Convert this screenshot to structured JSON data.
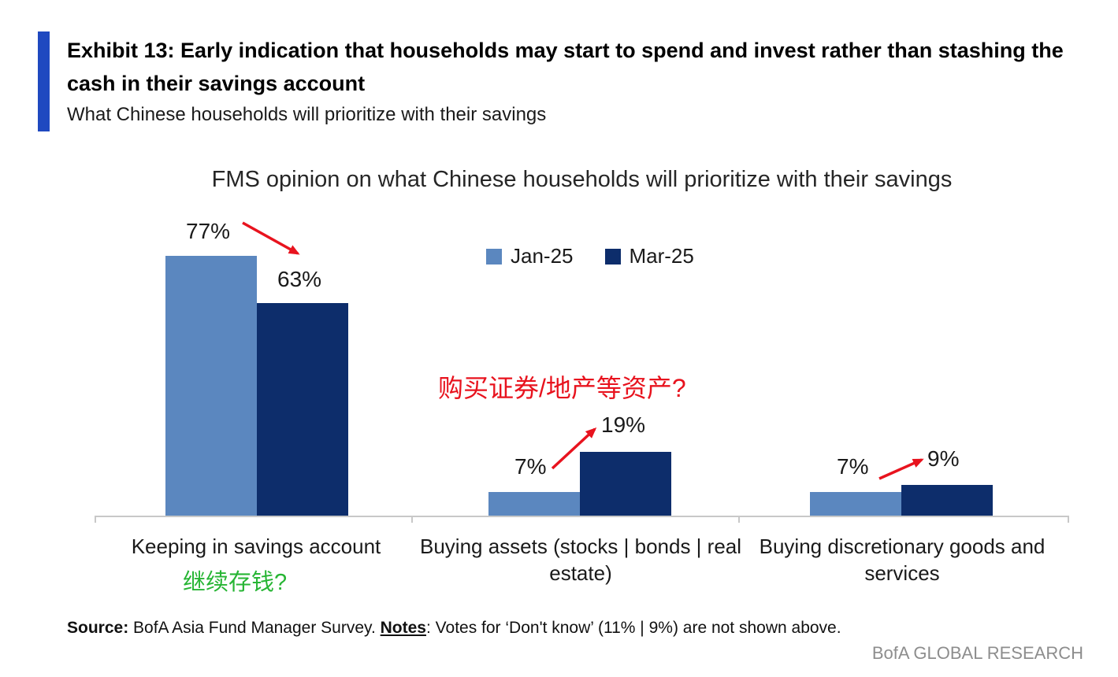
{
  "theme": {
    "accent_blue": "#1f49c0",
    "red": "#e8131e",
    "green": "#27b534",
    "axis_gray": "#c8c8c8",
    "brand_gray": "#8d8d8d"
  },
  "exhibit": {
    "title": "Exhibit 13: Early indication that households may start to spend and invest rather than stashing the cash in their savings account",
    "subtitle": "What Chinese households will prioritize with their savings"
  },
  "chart_data": {
    "type": "bar",
    "title": "FMS opinion on what Chinese households will prioritize with their savings",
    "categories": [
      "Keeping in savings account",
      "Buying assets (stocks | bonds | real estate)",
      "Buying discretionary goods and services"
    ],
    "series": [
      {
        "name": "Jan-25",
        "color": "#5b87bf",
        "values": [
          77,
          7,
          7
        ],
        "labels": [
          "77%",
          "7%",
          "7%"
        ]
      },
      {
        "name": "Mar-25",
        "color": "#0d2d6b",
        "values": [
          63,
          19,
          9
        ],
        "labels": [
          "63%",
          "19%",
          "9%"
        ]
      }
    ],
    "unit": "percent",
    "ylim": [
      0,
      85
    ],
    "grid": false,
    "legend_position": "top",
    "annotations": {
      "red_cn_text": "购买证券/地产等资产?",
      "green_cn_text": "继续存钱?",
      "arrows": [
        "77% → 63%",
        "7% → 19%",
        "7% → 9%"
      ]
    }
  },
  "footer": {
    "source_label": "Source:",
    "source_text": " BofA Asia Fund Manager Survey. ",
    "notes_label": "Notes",
    "notes_text": ": Votes for ‘Don't know’ (11% | 9%) are not shown above.",
    "brand": "BofA GLOBAL RESEARCH"
  }
}
